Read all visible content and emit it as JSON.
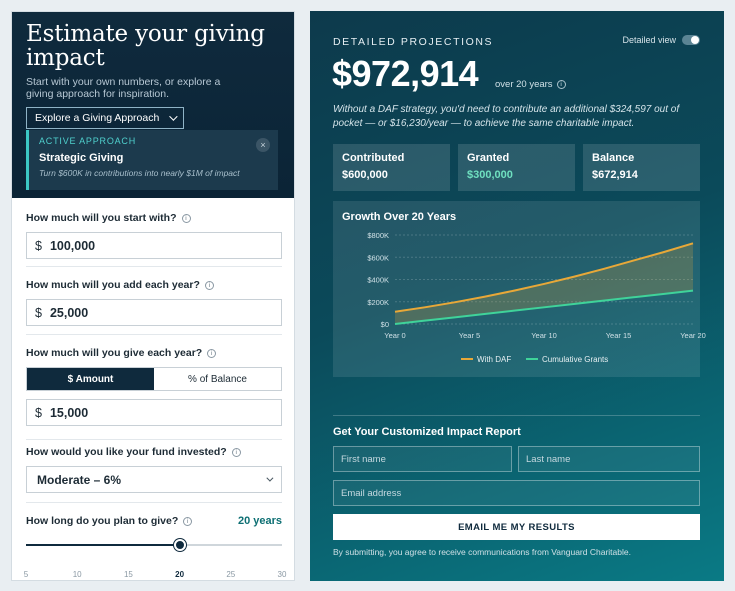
{
  "left": {
    "title": "Estimate your giving impact",
    "subtitle": "Start with your own numbers, or explore a giving approach for inspiration.",
    "explore_label": "Explore a Giving Approach",
    "approach": {
      "tag": "ACTIVE APPROACH",
      "name": "Strategic Giving",
      "desc": "Turn $600K in contributions into nearly $1M of impact",
      "close": "×"
    },
    "start": {
      "question": "How much will you start with?",
      "currency": "$",
      "value": "100,000"
    },
    "add": {
      "question": "How much will you add each year?",
      "currency": "$",
      "value": "25,000"
    },
    "give": {
      "question": "How much will you give each year?",
      "toggle_amount": "$ Amount",
      "toggle_pct": "% of Balance",
      "currency": "$",
      "value": "15,000"
    },
    "invest": {
      "question": "How would you like your fund invested?",
      "value": "Moderate – 6%"
    },
    "duration": {
      "question": "How long do you plan to give?",
      "value_label": "20 years",
      "slider": {
        "min": 5,
        "max": 30,
        "value": 20
      },
      "ticks": [
        "5",
        "10",
        "15",
        "20",
        "25",
        "30"
      ]
    },
    "info_glyph": "i"
  },
  "right": {
    "heading": "DETAILED PROJECTIONS",
    "detailed_view_label": "Detailed view",
    "total": "$972,914",
    "over_label": "over 20 years",
    "note": "Without a DAF strategy, you'd need to contribute an additional $324,597 out of pocket — or $16,230/year — to achieve the same charitable impact.",
    "stats": [
      {
        "label": "Contributed",
        "value": "$600,000",
        "color": "#ffffff"
      },
      {
        "label": "Granted",
        "value": "$300,000",
        "color": "#6fe0c0"
      },
      {
        "label": "Balance",
        "value": "$672,914",
        "color": "#ffffff"
      }
    ],
    "report_title": "Get Your Customized Impact Report",
    "first_name_placeholder": "First name",
    "last_name_placeholder": "Last name",
    "email_placeholder": "Email address",
    "email_button": "EMAIL ME MY RESULTS",
    "disclaimer": "By submitting, you agree to receive communications from Vanguard Charitable."
  },
  "chart_data": {
    "type": "area",
    "title": "Growth Over 20 Years",
    "x": [
      0,
      5,
      10,
      15,
      20
    ],
    "x_tick_labels": [
      "Year 0",
      "Year 5",
      "Year 10",
      "Year 15",
      "Year 20"
    ],
    "y_tick_labels": [
      "$0",
      "$200K",
      "$400K",
      "$600K",
      "$800K"
    ],
    "y_ticks": [
      0,
      200000,
      400000,
      600000,
      800000
    ],
    "ylim": [
      0,
      800000
    ],
    "legend_placement": "bottom",
    "series": [
      {
        "name": "With DAF",
        "color": "#e8a838",
        "x": [
          0,
          2,
          4,
          6,
          8,
          10,
          12,
          14,
          16,
          18,
          20
        ],
        "values": [
          110000,
          150000,
          195000,
          245000,
          300000,
          360000,
          425000,
          495000,
          570000,
          645000,
          725000
        ]
      },
      {
        "name": "Cumulative Grants",
        "color": "#3fd39a",
        "x": [
          0,
          2,
          4,
          6,
          8,
          10,
          12,
          14,
          16,
          18,
          20
        ],
        "values": [
          0,
          30000,
          60000,
          90000,
          120000,
          150000,
          180000,
          210000,
          240000,
          270000,
          300000
        ]
      }
    ]
  }
}
